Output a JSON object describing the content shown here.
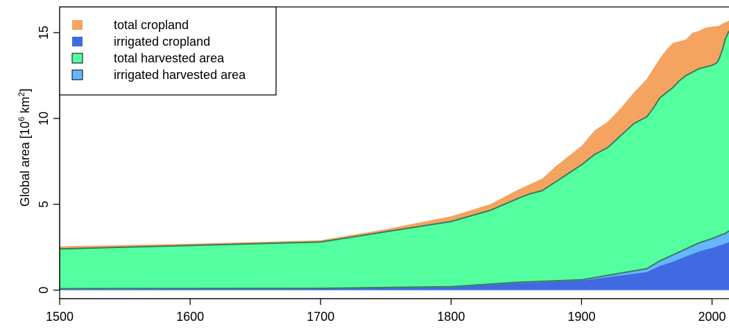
{
  "chart_data": {
    "type": "area",
    "xlabel": "",
    "ylabel": {
      "prefix": "Global area [10",
      "exp1": "6",
      "mid": " km",
      "exp2": "2",
      "suffix": "]"
    },
    "xlim": [
      1500,
      2013
    ],
    "ylim": [
      -0.5,
      16.5
    ],
    "x_ticks": [
      1500,
      1600,
      1700,
      1800,
      1900,
      2000
    ],
    "y_ticks": [
      0,
      5,
      10,
      15
    ],
    "grid": false,
    "legend_position": "top-left",
    "legend": [
      {
        "label": "total cropland",
        "color": "#F4A460",
        "border": false
      },
      {
        "label": "irrigated cropland",
        "color": "#4169E1",
        "border": false
      },
      {
        "label": "total harvested area",
        "color": "#54FF9F",
        "border": true
      },
      {
        "label": "irrigated harvested area",
        "color": "#63B8FF",
        "border": true
      }
    ],
    "series": [
      {
        "name": "total cropland",
        "color": "#F4A460",
        "x": [
          1500,
          1600,
          1700,
          1750,
          1800,
          1830,
          1850,
          1870,
          1880,
          1900,
          1910,
          1920,
          1930,
          1940,
          1950,
          1960,
          1965,
          1970,
          1980,
          1985,
          1990,
          1995,
          2000,
          2005,
          2010,
          2013
        ],
        "y": [
          2.55,
          2.7,
          2.9,
          3.55,
          4.3,
          5.0,
          5.8,
          6.5,
          7.2,
          8.4,
          9.3,
          9.8,
          10.6,
          11.5,
          12.3,
          13.5,
          14.0,
          14.4,
          14.6,
          15.0,
          15.1,
          15.3,
          15.35,
          15.4,
          15.6,
          15.7
        ]
      },
      {
        "name": "total harvested area",
        "color": "#54FF9F",
        "x": [
          1500,
          1600,
          1700,
          1750,
          1800,
          1830,
          1850,
          1860,
          1870,
          1880,
          1890,
          1900,
          1910,
          1920,
          1930,
          1940,
          1950,
          1955,
          1960,
          1965,
          1970,
          1975,
          1980,
          1985,
          1990,
          1995,
          2000,
          2003,
          2005,
          2008,
          2010,
          2013
        ],
        "y": [
          2.4,
          2.6,
          2.8,
          3.4,
          4.0,
          4.65,
          5.3,
          5.6,
          5.8,
          6.3,
          6.8,
          7.3,
          7.9,
          8.3,
          9.0,
          9.7,
          10.1,
          10.6,
          11.2,
          11.5,
          11.8,
          12.2,
          12.5,
          12.7,
          12.9,
          13.0,
          13.1,
          13.2,
          13.4,
          14.0,
          14.6,
          15.1
        ]
      },
      {
        "name": "irrigated harvested area",
        "color": "#63B8FF",
        "x": [
          1500,
          1700,
          1800,
          1850,
          1900,
          1950,
          1960,
          1970,
          1980,
          1990,
          2000,
          2010,
          2013
        ],
        "y": [
          0.08,
          0.1,
          0.2,
          0.45,
          0.6,
          1.25,
          1.7,
          2.05,
          2.4,
          2.75,
          3.0,
          3.3,
          3.45
        ]
      },
      {
        "name": "irrigated cropland",
        "color": "#4169E1",
        "x": [
          1500,
          1700,
          1800,
          1850,
          1900,
          1950,
          1960,
          1970,
          1980,
          1990,
          2000,
          2010,
          2013
        ],
        "y": [
          0.05,
          0.07,
          0.15,
          0.4,
          0.55,
          1.05,
          1.4,
          1.65,
          1.95,
          2.25,
          2.45,
          2.7,
          2.8
        ]
      }
    ]
  }
}
